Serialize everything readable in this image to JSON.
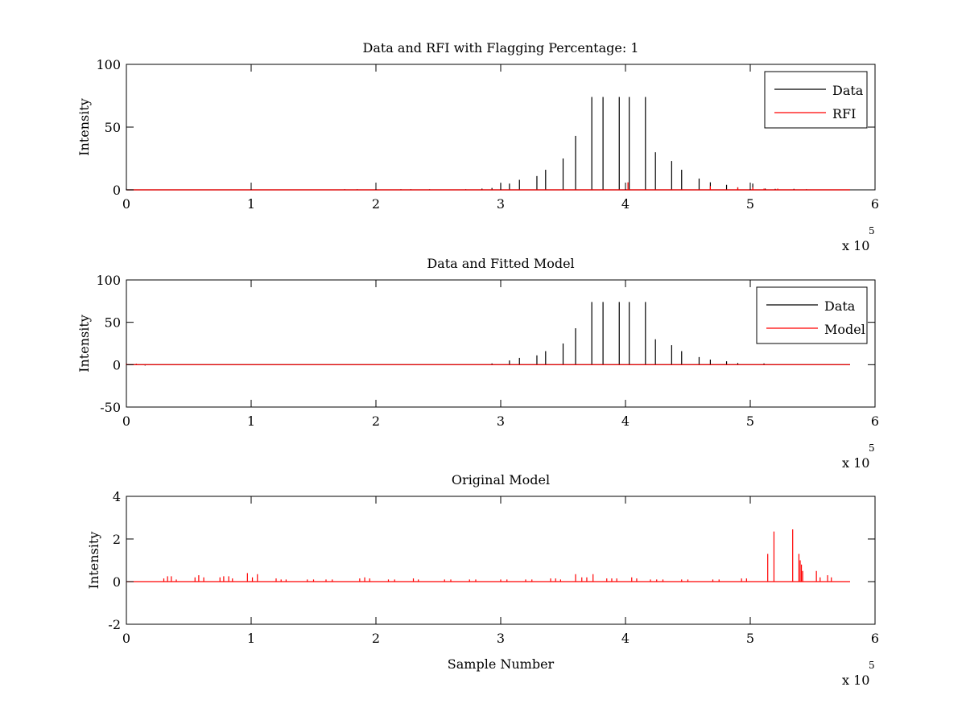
{
  "colors": {
    "data": "#000000",
    "rfi": "#ff0000",
    "model": "#ff0000",
    "axes": "#000000",
    "background": "#ffffff"
  },
  "chart_data": [
    {
      "type": "line",
      "title": "Data and RFI with Flagging Percentage: 1",
      "xlabel": "",
      "ylabel": "Intensity",
      "xlim": [
        0,
        600000
      ],
      "ylim": [
        0,
        100
      ],
      "x_ticks": [
        "0",
        "1",
        "2",
        "3",
        "4",
        "5",
        "6"
      ],
      "y_ticks": [
        "0",
        "50",
        "100"
      ],
      "x_multiplier": {
        "base": "x 10",
        "exponent": "5"
      },
      "grid": false,
      "legend_position": "top-right",
      "series": [
        {
          "name": "Data",
          "color": "#000000",
          "baseline": 0,
          "spikes": [
            [
              0,
              1
            ],
            [
              100000,
              0.5
            ],
            [
              175000,
              0.5
            ],
            [
              185000,
              0.5
            ],
            [
              200000,
              0.5
            ],
            [
              220000,
              0.5
            ],
            [
              228000,
              0.5
            ],
            [
              243000,
              0.5
            ],
            [
              272000,
              0.5
            ],
            [
              285000,
              1
            ],
            [
              293000,
              1.5
            ],
            [
              300000,
              5
            ],
            [
              307000,
              5
            ],
            [
              315000,
              8
            ],
            [
              329000,
              11
            ],
            [
              336000,
              16
            ],
            [
              350000,
              25
            ],
            [
              360000,
              43
            ],
            [
              373000,
              74
            ],
            [
              382000,
              74
            ],
            [
              395000,
              74
            ],
            [
              403000,
              74
            ],
            [
              416000,
              74
            ],
            [
              424000,
              30
            ],
            [
              437000,
              23
            ],
            [
              445000,
              16
            ],
            [
              459000,
              9
            ],
            [
              468000,
              6
            ],
            [
              481000,
              4
            ],
            [
              490000,
              2
            ],
            [
              502000,
              5
            ],
            [
              512000,
              1
            ],
            [
              520000,
              0.8
            ],
            [
              535000,
              0.8
            ],
            [
              545000,
              0.5
            ]
          ]
        },
        {
          "name": "RFI",
          "color": "#ff0000",
          "baseline": 0,
          "spikes": [
            [
              402000,
              6
            ],
            [
              468000,
              3
            ],
            [
              490000,
              2
            ],
            [
              502000,
              2
            ],
            [
              511000,
              1
            ],
            [
              522000,
              1
            ]
          ]
        }
      ]
    },
    {
      "type": "line",
      "title": "Data and Fitted Model",
      "xlabel": "",
      "ylabel": "Intensity",
      "xlim": [
        0,
        600000
      ],
      "ylim": [
        -50,
        100
      ],
      "x_ticks": [
        "0",
        "1",
        "2",
        "3",
        "4",
        "5",
        "6"
      ],
      "y_ticks": [
        "-50",
        "0",
        "50",
        "100"
      ],
      "x_multiplier": {
        "base": "x 10",
        "exponent": "5"
      },
      "grid": false,
      "legend_position": "top-right",
      "series": [
        {
          "name": "Data",
          "color": "#000000",
          "baseline": 0,
          "spikes": [
            [
              0,
              1.5
            ],
            [
              8000,
              1
            ],
            [
              15000,
              -1
            ],
            [
              293000,
              1.5
            ],
            [
              307000,
              5
            ],
            [
              315000,
              8
            ],
            [
              329000,
              11
            ],
            [
              336000,
              16
            ],
            [
              350000,
              25
            ],
            [
              360000,
              43
            ],
            [
              373000,
              74
            ],
            [
              382000,
              74
            ],
            [
              395000,
              74
            ],
            [
              403000,
              74
            ],
            [
              416000,
              74
            ],
            [
              424000,
              30
            ],
            [
              437000,
              23
            ],
            [
              445000,
              16
            ],
            [
              459000,
              9
            ],
            [
              468000,
              6
            ],
            [
              481000,
              4
            ],
            [
              490000,
              2
            ],
            [
              511000,
              1.5
            ]
          ]
        },
        {
          "name": "Model",
          "color": "#ff0000",
          "baseline": 0,
          "spikes": [
            [
              0,
              1
            ],
            [
              8000,
              1
            ],
            [
              15000,
              0.5
            ]
          ]
        }
      ]
    },
    {
      "type": "line",
      "title": "Original Model",
      "xlabel": "Sample Number",
      "ylabel": "Intensity",
      "xlim": [
        0,
        600000
      ],
      "ylim": [
        -2,
        4
      ],
      "x_ticks": [
        "0",
        "1",
        "2",
        "3",
        "4",
        "5",
        "6"
      ],
      "y_ticks": [
        "-2",
        "0",
        "2",
        "4"
      ],
      "x_multiplier": {
        "base": "x 10",
        "exponent": "5"
      },
      "grid": false,
      "legend_position": "none",
      "series": [
        {
          "color": "#ff0000",
          "baseline": 0,
          "spikes": [
            [
              30000,
              0.15
            ],
            [
              33000,
              0.25
            ],
            [
              36000,
              0.25
            ],
            [
              40000,
              0.1
            ],
            [
              55000,
              0.2
            ],
            [
              58000,
              0.3
            ],
            [
              62000,
              0.2
            ],
            [
              75000,
              0.2
            ],
            [
              78000,
              0.25
            ],
            [
              82000,
              0.25
            ],
            [
              85000,
              0.15
            ],
            [
              97000,
              0.4
            ],
            [
              101000,
              0.2
            ],
            [
              105000,
              0.35
            ],
            [
              120000,
              0.15
            ],
            [
              124000,
              0.1
            ],
            [
              128000,
              0.1
            ],
            [
              145000,
              0.1
            ],
            [
              150000,
              0.1
            ],
            [
              160000,
              0.1
            ],
            [
              165000,
              0.1
            ],
            [
              187000,
              0.15
            ],
            [
              191000,
              0.2
            ],
            [
              195000,
              0.15
            ],
            [
              210000,
              0.1
            ],
            [
              215000,
              0.1
            ],
            [
              230000,
              0.15
            ],
            [
              234000,
              0.1
            ],
            [
              255000,
              0.1
            ],
            [
              260000,
              0.1
            ],
            [
              275000,
              0.1
            ],
            [
              280000,
              0.1
            ],
            [
              300000,
              0.1
            ],
            [
              305000,
              0.1
            ],
            [
              320000,
              0.1
            ],
            [
              325000,
              0.1
            ],
            [
              340000,
              0.15
            ],
            [
              344000,
              0.15
            ],
            [
              348000,
              0.1
            ],
            [
              360000,
              0.35
            ],
            [
              365000,
              0.2
            ],
            [
              369000,
              0.2
            ],
            [
              374000,
              0.35
            ],
            [
              385000,
              0.15
            ],
            [
              389000,
              0.15
            ],
            [
              393000,
              0.15
            ],
            [
              405000,
              0.2
            ],
            [
              409000,
              0.15
            ],
            [
              420000,
              0.1
            ],
            [
              425000,
              0.1
            ],
            [
              430000,
              0.1
            ],
            [
              445000,
              0.1
            ],
            [
              450000,
              0.1
            ],
            [
              470000,
              0.1
            ],
            [
              475000,
              0.1
            ],
            [
              493000,
              0.15
            ],
            [
              497000,
              0.15
            ],
            [
              514000,
              1.3
            ],
            [
              519000,
              2.35
            ],
            [
              534000,
              2.45
            ],
            [
              539000,
              1.3
            ],
            [
              540000,
              1.0
            ],
            [
              541000,
              0.8
            ],
            [
              542000,
              0.5
            ],
            [
              553000,
              0.5
            ],
            [
              556000,
              0.2
            ],
            [
              562000,
              0.3
            ],
            [
              565000,
              0.2
            ]
          ]
        }
      ]
    }
  ]
}
